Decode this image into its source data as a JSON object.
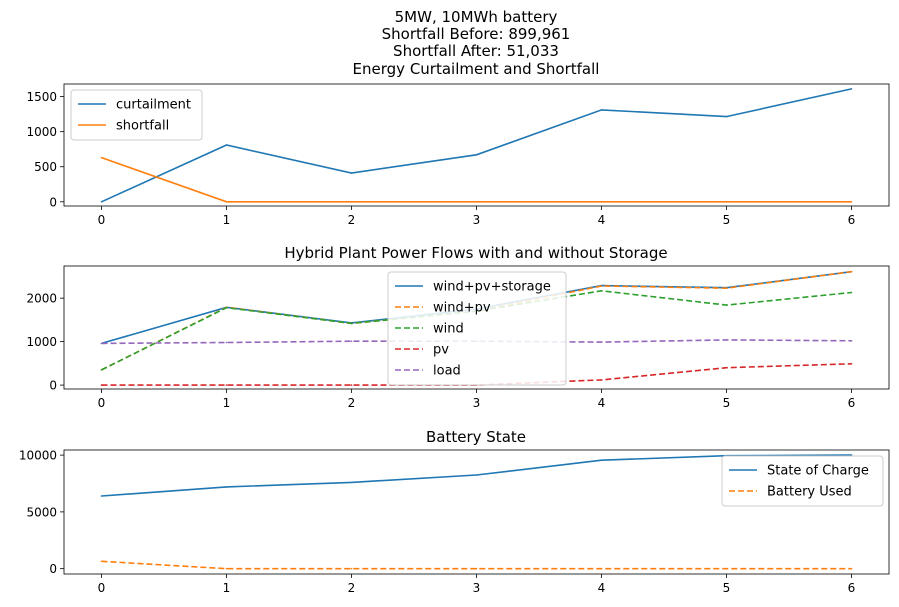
{
  "figure": {
    "suptitle_lines": [
      "5MW, 10MWh battery",
      "Shortfall Before: 899,961",
      "Shortfall After: 51,033"
    ]
  },
  "chart_data": [
    {
      "type": "line",
      "title": "Energy Curtailment and Shortfall",
      "x": [
        0,
        1,
        2,
        3,
        4,
        5,
        6
      ],
      "xlim": [
        -0.3,
        6.3
      ],
      "ylim": [
        -60,
        1680
      ],
      "xticks": [
        "0",
        "1",
        "2",
        "3",
        "4",
        "5",
        "6"
      ],
      "yticks": [
        0,
        500,
        1000,
        1500
      ],
      "grid": false,
      "legend_position": "upper-left",
      "series": [
        {
          "name": "curtailment",
          "color": "#1f77b4",
          "dash": "solid",
          "values": [
            0,
            810,
            410,
            670,
            1310,
            1215,
            1610
          ]
        },
        {
          "name": "shortfall",
          "color": "#ff7f0e",
          "dash": "solid",
          "values": [
            630,
            0,
            0,
            0,
            0,
            0,
            0
          ]
        }
      ]
    },
    {
      "type": "line",
      "title": "Hybrid Plant Power Flows with and without Storage",
      "x": [
        0,
        1,
        2,
        3,
        4,
        5,
        6
      ],
      "xlim": [
        -0.3,
        6.3
      ],
      "ylim": [
        -90,
        2740
      ],
      "xticks": [
        "0",
        "1",
        "2",
        "3",
        "4",
        "5",
        "6"
      ],
      "yticks": [
        0,
        1000,
        2000
      ],
      "grid": false,
      "legend_position": "upper-center",
      "series": [
        {
          "name": "wind+pv+storage",
          "color": "#1f77b4",
          "dash": "solid",
          "values": [
            960,
            1790,
            1430,
            1750,
            2290,
            2240,
            2610
          ]
        },
        {
          "name": "wind+pv",
          "color": "#ff7f0e",
          "dash": "dashed",
          "values": [
            350,
            1790,
            1420,
            1700,
            2280,
            2230,
            2610
          ]
        },
        {
          "name": "wind",
          "color": "#2ca02c",
          "dash": "dashed",
          "values": [
            350,
            1780,
            1420,
            1700,
            2170,
            1840,
            2130
          ]
        },
        {
          "name": "pv",
          "color": "#d62728",
          "dash": "dashed",
          "values": [
            0,
            0,
            0,
            0,
            120,
            400,
            490
          ]
        },
        {
          "name": "load",
          "color": "#9467bd",
          "dash": "dashed",
          "values": [
            960,
            980,
            1010,
            1010,
            990,
            1040,
            1020
          ]
        }
      ]
    },
    {
      "type": "line",
      "title": "Battery State",
      "x": [
        0,
        1,
        2,
        3,
        4,
        5,
        6
      ],
      "xlim": [
        -0.3,
        6.3
      ],
      "ylim": [
        -470,
        10450
      ],
      "xticks": [
        "0",
        "1",
        "2",
        "3",
        "4",
        "5",
        "6"
      ],
      "yticks": [
        0,
        5000,
        10000
      ],
      "grid": false,
      "legend_position": "right",
      "series": [
        {
          "name": "State of Charge",
          "color": "#1f77b4",
          "dash": "solid",
          "values": [
            6400,
            7200,
            7600,
            8250,
            9550,
            9950,
            10000
          ]
        },
        {
          "name": "Battery Used",
          "color": "#ff7f0e",
          "dash": "dashed",
          "values": [
            650,
            0,
            0,
            0,
            0,
            0,
            0
          ]
        }
      ]
    }
  ]
}
